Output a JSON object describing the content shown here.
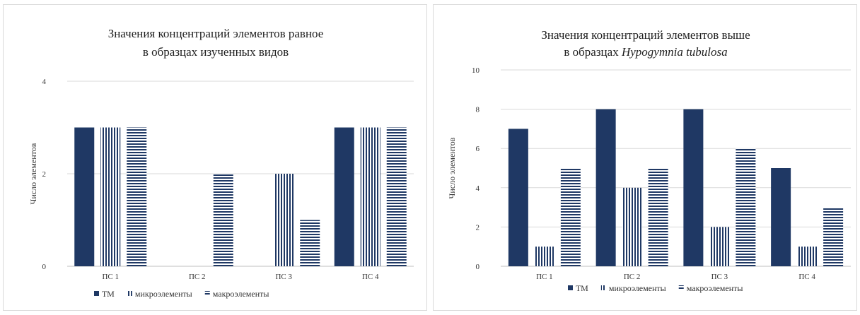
{
  "colors": {
    "tm": "#1f3864",
    "micro": "#1f3864",
    "macro": "#1f3864",
    "patternBg": "#ffffff"
  },
  "chart_data": [
    {
      "type": "bar",
      "title_line1": "Значения концентраций элементов равное",
      "title_line2": "в образцах изученных видов",
      "title_line2_italic": "",
      "ylabel": "Число элементов",
      "xlabel": "",
      "categories": [
        "ПС 1",
        "ПС 2",
        "ПС 3",
        "ПС 4"
      ],
      "yticks": [
        0,
        2,
        4
      ],
      "ylim": [
        0,
        4
      ],
      "grid": true,
      "legend_position": "bottom",
      "series": [
        {
          "name": "ТМ",
          "pattern": "solid",
          "values": [
            3,
            0,
            0,
            3
          ]
        },
        {
          "name": "микроэлементы",
          "pattern": "vertical",
          "values": [
            3,
            0,
            2,
            3
          ]
        },
        {
          "name": "макроэлементы",
          "pattern": "horizontal",
          "values": [
            3,
            2,
            1,
            3
          ]
        }
      ]
    },
    {
      "type": "bar",
      "title_line1": "Значения концентраций элементов выше",
      "title_line2": "в образцах ",
      "title_line2_italic": "Hypogymnia tubulosa",
      "ylabel": "Число элементов",
      "xlabel": "",
      "categories": [
        "ПС 1",
        "ПС 2",
        "ПС 3",
        "ПС 4"
      ],
      "yticks": [
        0,
        2,
        4,
        6,
        8,
        10
      ],
      "ylim": [
        0,
        10
      ],
      "grid": true,
      "legend_position": "bottom",
      "series": [
        {
          "name": "ТМ",
          "pattern": "solid",
          "values": [
            7,
            8,
            8,
            5
          ]
        },
        {
          "name": "микроэлементы",
          "pattern": "vertical",
          "values": [
            1,
            4,
            2,
            1
          ]
        },
        {
          "name": "макроэлементы",
          "pattern": "horizontal",
          "values": [
            5,
            5,
            6,
            3
          ]
        }
      ]
    }
  ]
}
